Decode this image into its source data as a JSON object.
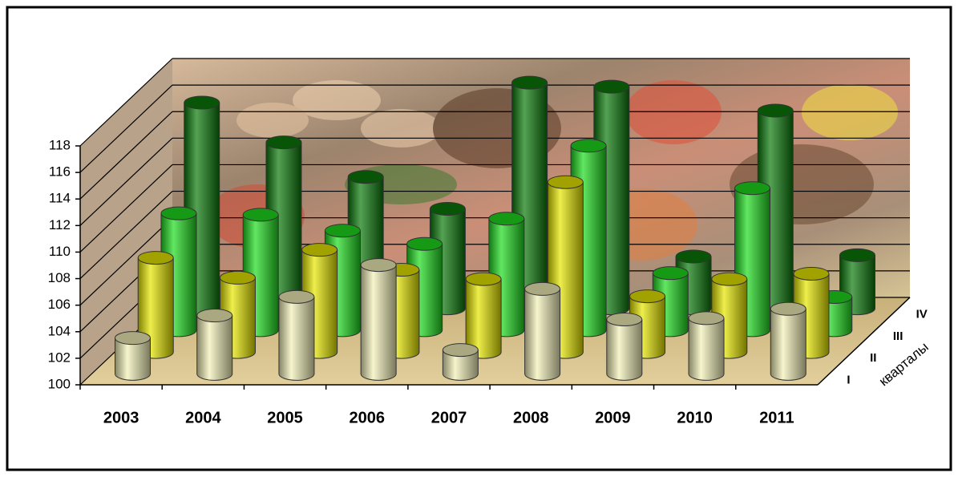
{
  "chart_data": {
    "type": "bar3d",
    "categories": [
      "2003",
      "2004",
      "2005",
      "2006",
      "2007",
      "2008",
      "2009",
      "2010",
      "2011"
    ],
    "series": [
      {
        "name": "I",
        "color": "#f2f0b8",
        "values": [
          102.7,
          104.4,
          105.8,
          108.2,
          101.8,
          106.4,
          104.1,
          104.2,
          104.9
        ]
      },
      {
        "name": "II",
        "color": "#e6e600",
        "values": [
          107.1,
          105.6,
          107.7,
          106.2,
          105.5,
          112.8,
          104.2,
          105.5,
          105.9
        ]
      },
      {
        "name": "III",
        "color": "#1fdc1f",
        "values": [
          108.8,
          108.7,
          107.5,
          106.5,
          108.4,
          113.9,
          104.3,
          110.7,
          102.5
        ]
      },
      {
        "name": "IV",
        "color": "#0b7a0b",
        "values": [
          115.5,
          112.5,
          109.9,
          107.5,
          117.0,
          116.7,
          103.9,
          114.9,
          104.0
        ]
      }
    ],
    "z_label": "кварталы",
    "ylim": [
      100,
      118
    ],
    "yticks": [
      100,
      102,
      104,
      106,
      108,
      110,
      112,
      114,
      116,
      118
    ],
    "grid": true
  }
}
